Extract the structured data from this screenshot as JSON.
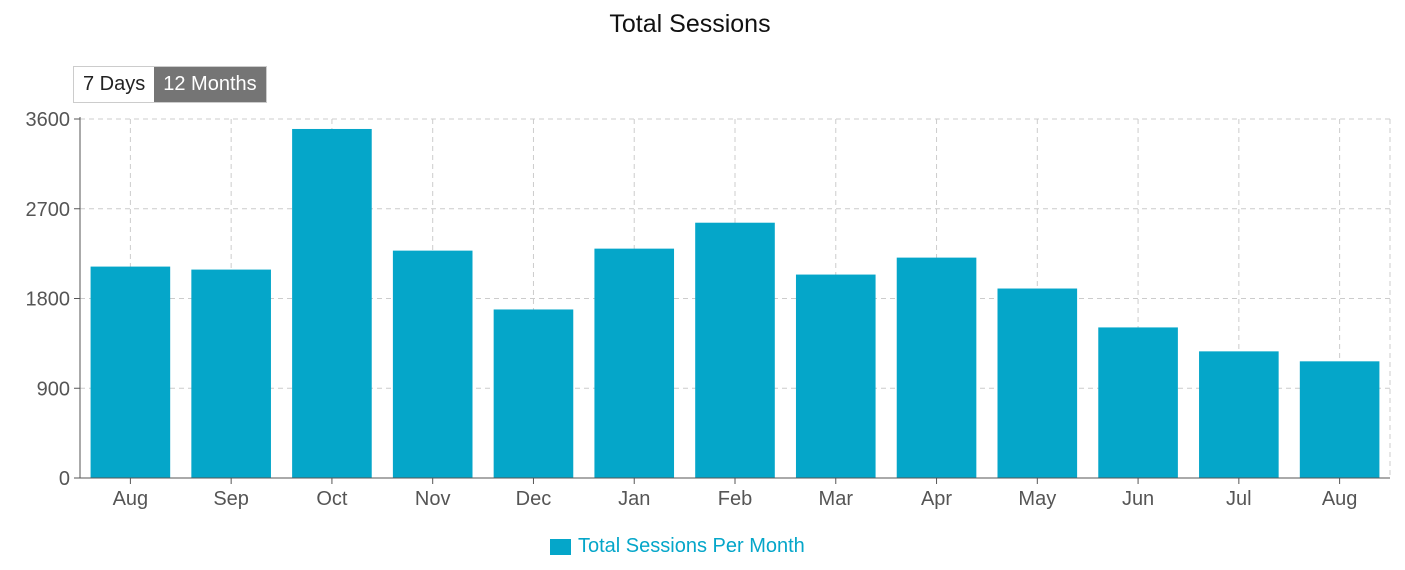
{
  "title": "Total Sessions",
  "controls": {
    "days_label": "7 Days",
    "months_label": "12 Months",
    "active": "12 Months"
  },
  "colors": {
    "bar": "#05a6c9",
    "grid": "#cccccc",
    "axis": "#555555",
    "tick_text": "#555555"
  },
  "legend": {
    "label": "Total Sessions Per Month"
  },
  "chart_data": {
    "type": "bar",
    "title": "Total Sessions",
    "xlabel": "",
    "ylabel": "",
    "categories": [
      "Aug",
      "Sep",
      "Oct",
      "Nov",
      "Dec",
      "Jan",
      "Feb",
      "Mar",
      "Apr",
      "May",
      "Jun",
      "Jul",
      "Aug"
    ],
    "series": [
      {
        "name": "Total Sessions Per Month",
        "values": [
          2120,
          2090,
          3500,
          2280,
          1690,
          2300,
          2560,
          2040,
          2210,
          1900,
          1510,
          1270,
          1170
        ]
      }
    ],
    "ylim": [
      0,
      3600
    ],
    "yticks": [
      0,
      900,
      1800,
      2700,
      3600
    ],
    "grid": true,
    "legend_position": "bottom"
  }
}
